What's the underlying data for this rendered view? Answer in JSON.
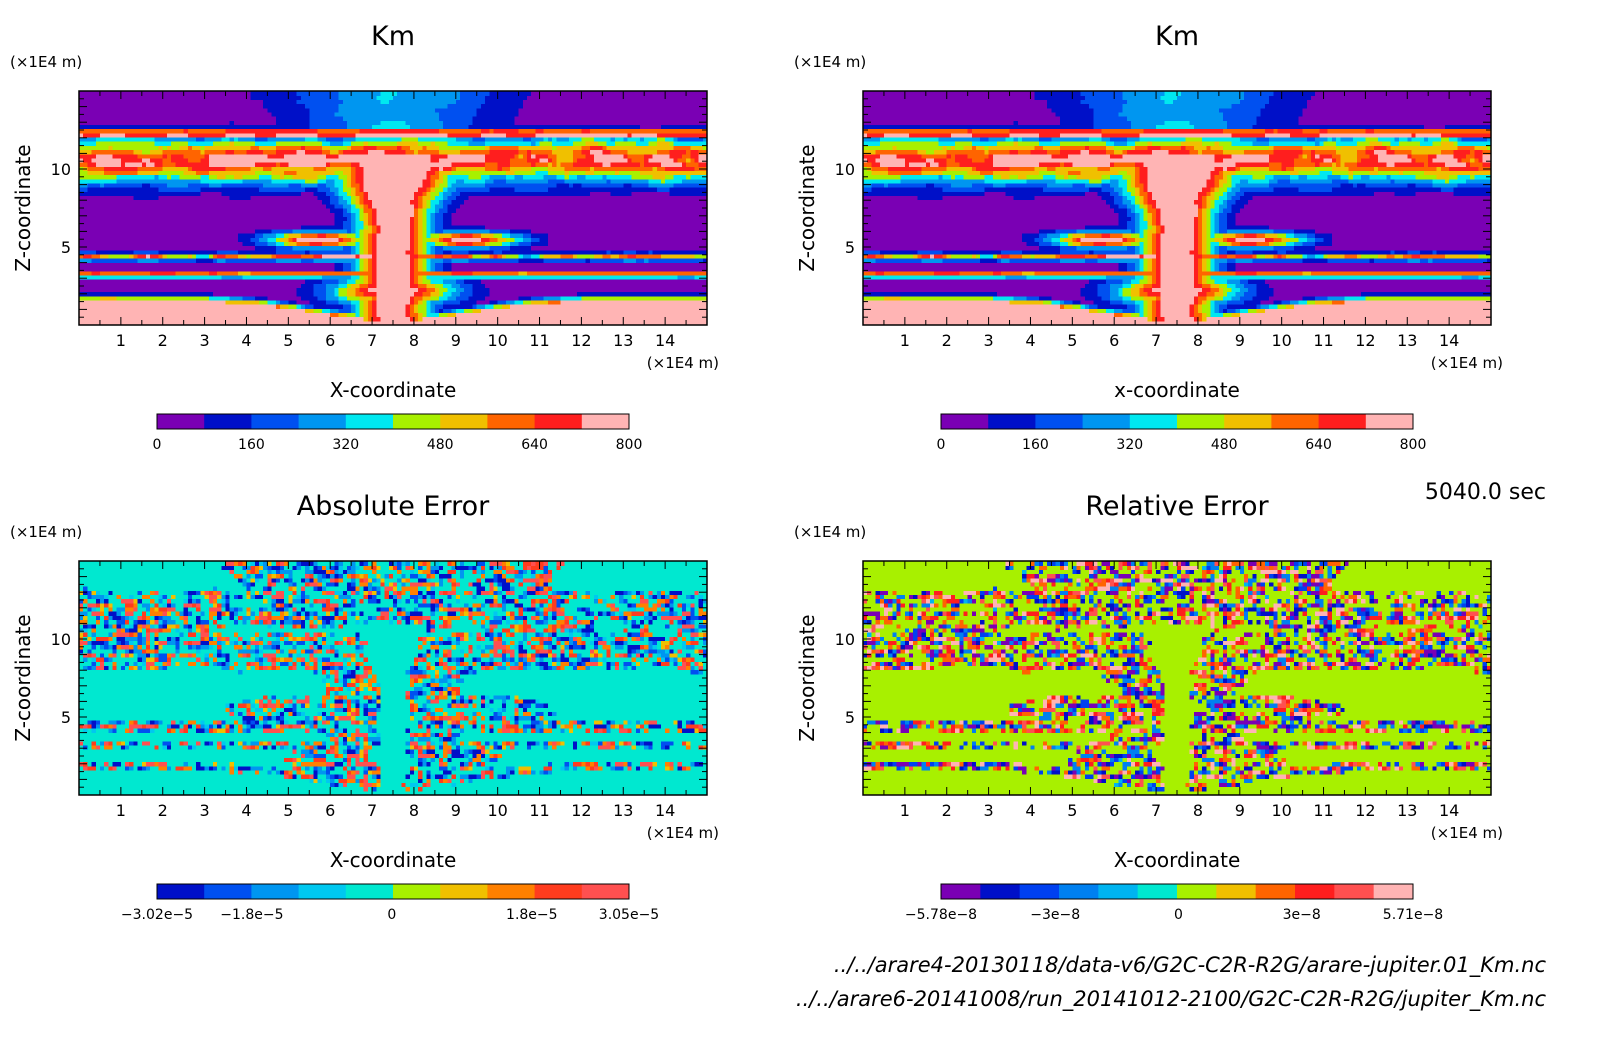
{
  "time_label": "5040.0 sec",
  "file_labels": [
    "../../arare4-20130118/data-v6/G2C-C2R-R2G/arare-jupiter.01_Km.nc",
    "../../arare6-20141008/run_20141012-2100/G2C-C2R-R2G/jupiter_Km.nc"
  ],
  "chart_data": [
    {
      "type": "heatmap",
      "title": "Km",
      "xlabel": "X-coordinate",
      "ylabel": "Z-coordinate",
      "x_unit": "(×1E4 m)",
      "y_unit": "(×1E4 m)",
      "xlim": [
        0,
        15
      ],
      "ylim": [
        0,
        15
      ],
      "x_ticks": [
        "1",
        "2",
        "3",
        "4",
        "5",
        "6",
        "7",
        "8",
        "9",
        "10",
        "11",
        "12",
        "13",
        "14"
      ],
      "y_ticks": [
        "5",
        "10"
      ],
      "field": "km",
      "colorbar": {
        "min": 0,
        "max": 800,
        "labels": [
          "0",
          "160",
          "320",
          "480",
          "640",
          "800"
        ],
        "colors": [
          "#7a00b4",
          "#0010c8",
          "#0050f0",
          "#0096f0",
          "#00e8f0",
          "#a8f000",
          "#f0c000",
          "#ff6400",
          "#ff1e1e",
          "#ffb4b4"
        ]
      }
    },
    {
      "type": "heatmap",
      "title": "Km",
      "xlabel": "x-coordinate",
      "ylabel": "Z-coordinate",
      "x_unit": "(×1E4 m)",
      "y_unit": "(×1E4 m)",
      "xlim": [
        0,
        15
      ],
      "ylim": [
        0,
        15
      ],
      "x_ticks": [
        "1",
        "2",
        "3",
        "4",
        "5",
        "6",
        "7",
        "8",
        "9",
        "10",
        "11",
        "12",
        "13",
        "14"
      ],
      "y_ticks": [
        "5",
        "10"
      ],
      "field": "km",
      "colorbar": {
        "min": 0,
        "max": 800,
        "labels": [
          "0",
          "160",
          "320",
          "480",
          "640",
          "800"
        ],
        "colors": [
          "#7a00b4",
          "#0010c8",
          "#0050f0",
          "#0096f0",
          "#00e8f0",
          "#a8f000",
          "#f0c000",
          "#ff6400",
          "#ff1e1e",
          "#ffb4b4"
        ]
      }
    },
    {
      "type": "heatmap",
      "title": "Absolute Error",
      "xlabel": "X-coordinate",
      "ylabel": "Z-coordinate",
      "x_unit": "(×1E4 m)",
      "y_unit": "(×1E4 m)",
      "xlim": [
        0,
        15
      ],
      "ylim": [
        0,
        15
      ],
      "x_ticks": [
        "1",
        "2",
        "3",
        "4",
        "5",
        "6",
        "7",
        "8",
        "9",
        "10",
        "11",
        "12",
        "13",
        "14"
      ],
      "y_ticks": [
        "5",
        "10"
      ],
      "field": "abs",
      "colorbar": {
        "min": -3.02e-05,
        "max": 3.05e-05,
        "labels": [
          "-3.02e-5",
          "-1.8e-5",
          "0",
          "1.8e-5",
          "3.05e-5"
        ],
        "colors": [
          "#0010c8",
          "#0050f0",
          "#0096f0",
          "#00c8f0",
          "#00e8d0",
          "#a8f000",
          "#f0c000",
          "#ff8000",
          "#ff3c1e",
          "#ff5050"
        ]
      }
    },
    {
      "type": "heatmap",
      "title": "Relative Error",
      "xlabel": "X-coordinate",
      "ylabel": "Z-coordinate",
      "x_unit": "(×1E4 m)",
      "y_unit": "(×1E4 m)",
      "xlim": [
        0,
        15
      ],
      "ylim": [
        0,
        15
      ],
      "x_ticks": [
        "1",
        "2",
        "3",
        "4",
        "5",
        "6",
        "7",
        "8",
        "9",
        "10",
        "11",
        "12",
        "13",
        "14"
      ],
      "y_ticks": [
        "5",
        "10"
      ],
      "field": "rel",
      "colorbar": {
        "min": -5.78e-08,
        "max": 5.71e-08,
        "labels": [
          "-5.78e-8",
          "-3e-8",
          "0",
          "3e-8",
          "5.71e-8"
        ],
        "colors": [
          "#7a00b4",
          "#0010c8",
          "#0040f0",
          "#0080f0",
          "#00b4f0",
          "#00e8d0",
          "#a8f000",
          "#f0c000",
          "#ff6400",
          "#ff1e1e",
          "#ff5050",
          "#ffb4b4"
        ]
      }
    }
  ]
}
